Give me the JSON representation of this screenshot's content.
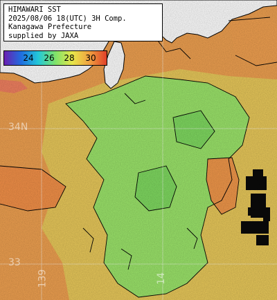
{
  "header": {
    "line1": "HIMAWARI SST",
    "line2": "2025/08/06 18(UTC) 3H Comp.",
    "line3": "Kanagawa Prefecture",
    "line4": "supplied by JAXA"
  },
  "legend": {
    "ticks": [
      "24",
      "26",
      "28",
      "30"
    ],
    "colors": [
      "#6a1fb0",
      "#1f6ee0",
      "#23c8d8",
      "#7fe36a",
      "#e8e64a",
      "#f0a040",
      "#e04028"
    ]
  },
  "grid": {
    "lat_label": "34N",
    "lat_label_2": "33",
    "lon_label": "139",
    "lon_label_2": "14"
  },
  "colors": {
    "land": "#ffffff",
    "cloud": "#0a0a0a",
    "warm": "#f0a050",
    "mid": "#e8d060",
    "cool": "#8fe66a",
    "coast": "#000000"
  }
}
